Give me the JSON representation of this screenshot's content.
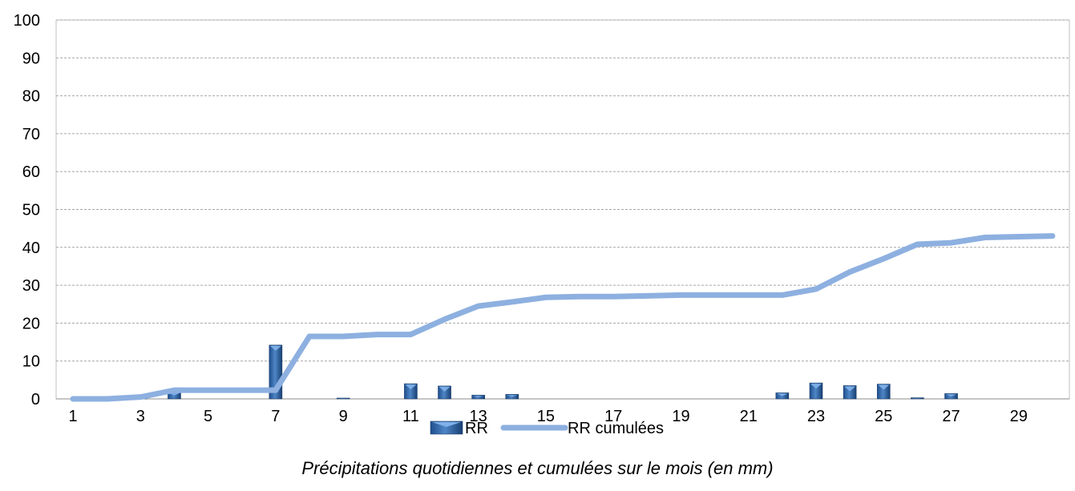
{
  "chart_data": {
    "type": "bar",
    "caption": "Précipitations quotidiennes et cumulées sur le mois (en mm)",
    "x": [
      1,
      2,
      3,
      4,
      5,
      6,
      7,
      8,
      9,
      10,
      11,
      12,
      13,
      14,
      15,
      16,
      17,
      18,
      19,
      20,
      21,
      22,
      23,
      24,
      25,
      26,
      27,
      28,
      29,
      30
    ],
    "x_tick_labels": [
      "1",
      "3",
      "5",
      "7",
      "9",
      "11",
      "13",
      "15",
      "17",
      "19",
      "21",
      "23",
      "25",
      "27",
      "29"
    ],
    "ylim": [
      0,
      100
    ],
    "y_ticks": [
      0,
      10,
      20,
      30,
      40,
      50,
      60,
      70,
      80,
      90,
      100
    ],
    "grid": true,
    "legend_position": "bottom",
    "series": [
      {
        "name": "RR",
        "kind": "bar",
        "color": "#2E5E9E",
        "values": [
          0,
          0,
          0.5,
          1.8,
          0,
          0,
          14.2,
          0,
          0.2,
          0,
          4.0,
          3.4,
          1.0,
          1.2,
          0,
          0,
          0,
          0,
          0,
          0,
          0,
          1.6,
          4.2,
          3.5,
          3.9,
          0.3,
          1.4,
          0,
          0,
          0
        ]
      },
      {
        "name": "RR cumulées",
        "kind": "line",
        "color": "#8DB0E0",
        "values": [
          0,
          0,
          0.5,
          2.3,
          2.3,
          2.3,
          2.3,
          16.5,
          16.5,
          17,
          17,
          21,
          24.5,
          25.6,
          26.8,
          27,
          27,
          27.2,
          27.4,
          27.4,
          27.4,
          27.4,
          29,
          33.5,
          37,
          40.8,
          41.2,
          42.6,
          42.8,
          43
        ]
      }
    ]
  }
}
